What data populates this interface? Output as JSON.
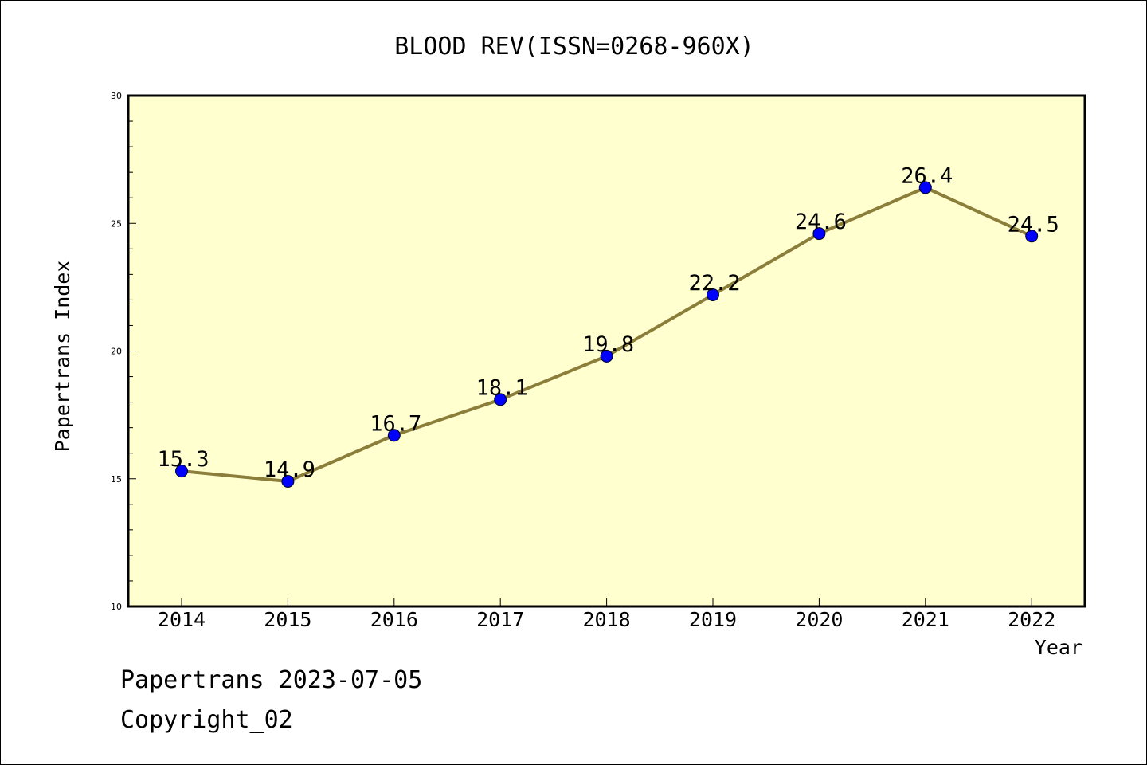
{
  "footer": {
    "line1": "Papertrans 2023-07-05",
    "line2": "Copyright_02"
  },
  "chart_data": {
    "type": "line",
    "title": "BLOOD REV(ISSN=0268-960X)",
    "xlabel": "Year",
    "ylabel": "Papertrans Index",
    "categories": [
      "2014",
      "2015",
      "2016",
      "2017",
      "2018",
      "2019",
      "2020",
      "2021",
      "2022"
    ],
    "series": [
      {
        "values": [
          15.3,
          14.9,
          16.7,
          18.1,
          19.8,
          22.2,
          24.6,
          26.4,
          24.5
        ]
      }
    ],
    "data_labels": [
      "15.3",
      "14.9",
      "16.7",
      "18.1",
      "19.8",
      "22.2",
      "24.6",
      "26.4",
      "24.5"
    ],
    "ylim": [
      10,
      30
    ],
    "y_major_ticks": [
      10,
      15,
      20,
      25,
      30
    ],
    "y_minor_step": 1,
    "grid": false,
    "legend": "none",
    "colors": {
      "plot_background": "#ffffd0",
      "line": "#8b7d3a",
      "marker": "#0000ff",
      "axis": "#000000"
    }
  }
}
